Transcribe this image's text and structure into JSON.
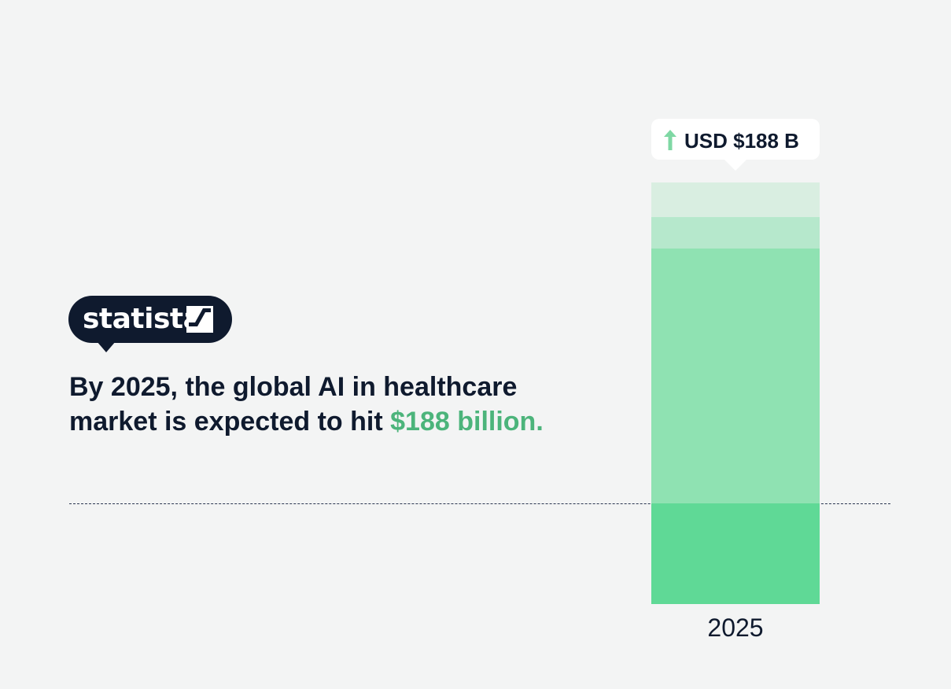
{
  "brand": {
    "logo_text": "statista",
    "logo_color": "#0f1a2e"
  },
  "headline": {
    "text": "By 2025, the global AI in healthcare market is expected to hit ",
    "highlight": "$188 billion.",
    "highlight_color": "#4cb47b"
  },
  "callout": {
    "icon": "arrow-up-icon",
    "label": "USD $188 B"
  },
  "chart_data": {
    "type": "bar",
    "categories": [
      "2025"
    ],
    "values": [
      188
    ],
    "title": "",
    "xlabel": "",
    "ylabel": "",
    "colors": {
      "bar_base": "#5fd996",
      "bar_mid": "#8fe2b2",
      "bar_upper": "#b6e8cc",
      "bar_top": "#d9eee1"
    }
  }
}
